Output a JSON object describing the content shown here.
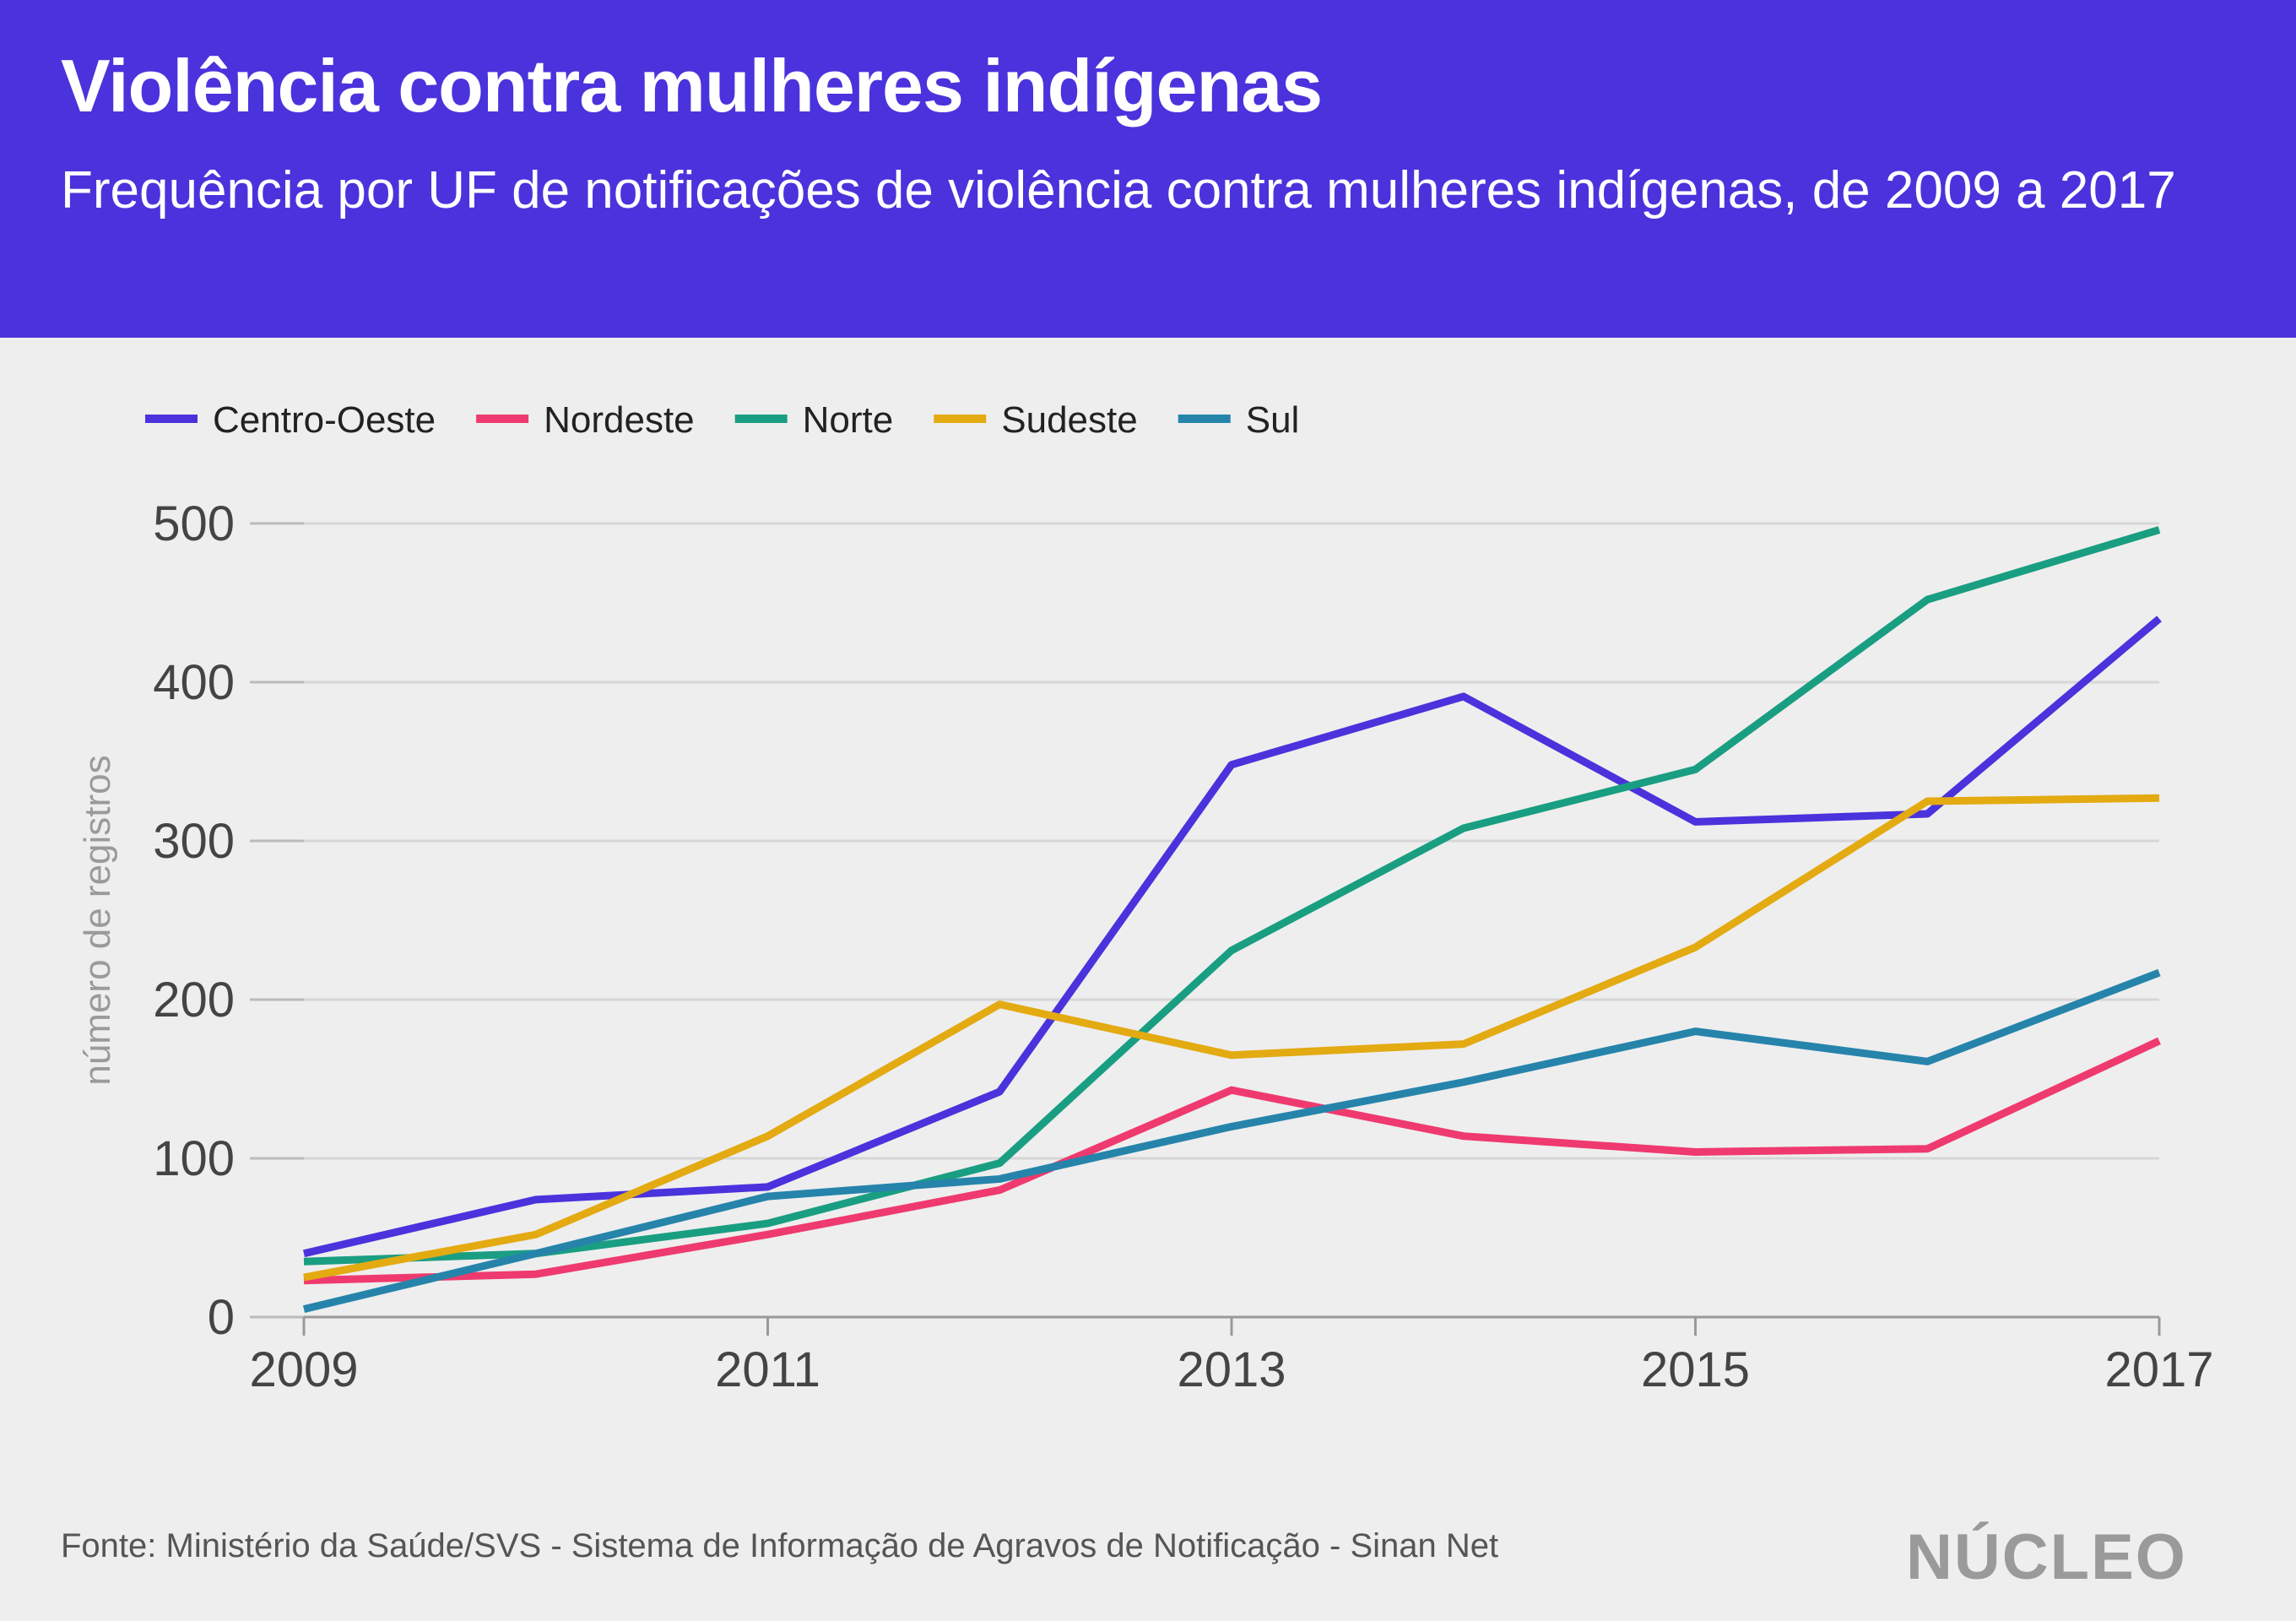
{
  "header": {
    "title": "Violência contra mulheres indígenas",
    "subtitle": "Frequência por UF de notificações de violência contra mulheres indígenas, de 2009 a 2017"
  },
  "footer": {
    "source": "Fonte: Ministério da Saúde/SVS - Sistema de Informação de Agravos de Notificação - Sinan Net",
    "logo": "NÚCLEO"
  },
  "colors": {
    "header_bg": "#4a33dc",
    "background": "#eeeeee",
    "grid": "#d6d6d6"
  },
  "chart_data": {
    "type": "line",
    "title": "Violência contra mulheres indígenas",
    "subtitle": "Frequência por UF de notificações de violência contra mulheres indígenas, de 2009 a 2017",
    "xlabel": "",
    "ylabel": "número de registros",
    "x": [
      2009,
      2010,
      2011,
      2012,
      2013,
      2014,
      2015,
      2016,
      2017
    ],
    "xticks": [
      "2009",
      "2011",
      "2013",
      "2015",
      "2017"
    ],
    "xlim": [
      2009,
      2017
    ],
    "yticks": [
      "0",
      "100",
      "200",
      "300",
      "400",
      "500"
    ],
    "ylim": [
      0,
      500
    ],
    "grid": true,
    "legend_position": "top-left",
    "series": [
      {
        "name": "Centro-Oeste",
        "color": "#4a33dc",
        "values": [
          40,
          74,
          82,
          142,
          348,
          391,
          312,
          317,
          440
        ]
      },
      {
        "name": "Nordeste",
        "color": "#ef3a6f",
        "values": [
          23,
          27,
          52,
          80,
          143,
          114,
          104,
          106,
          174
        ]
      },
      {
        "name": "Norte",
        "color": "#1a9e82",
        "values": [
          35,
          40,
          59,
          97,
          231,
          308,
          345,
          452,
          496
        ]
      },
      {
        "name": "Sudeste",
        "color": "#e3aa12",
        "values": [
          25,
          52,
          114,
          197,
          165,
          172,
          233,
          325,
          327
        ]
      },
      {
        "name": "Sul",
        "color": "#2684ab",
        "values": [
          5,
          40,
          76,
          87,
          120,
          148,
          180,
          161,
          217
        ]
      }
    ]
  }
}
